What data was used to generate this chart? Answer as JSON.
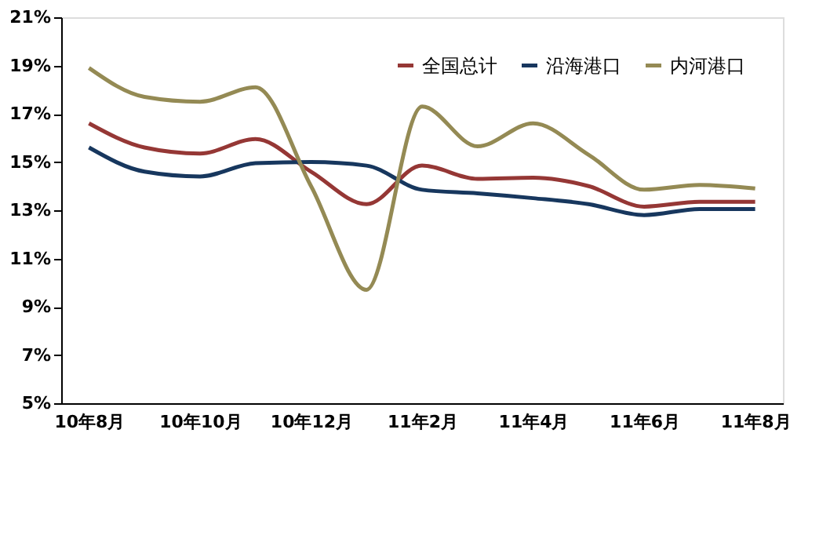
{
  "chart_data": {
    "type": "line",
    "categories": [
      "10年8月",
      null,
      "10年10月",
      null,
      "10年12月",
      null,
      "11年2月",
      null,
      "11年4月",
      null,
      "11年6月",
      null,
      "11年8月"
    ],
    "series": [
      {
        "name": "全国总计",
        "color": "#953735",
        "values": [
          16.6,
          15.6,
          15.35,
          15.95,
          14.6,
          13.25,
          14.85,
          14.3,
          14.35,
          14.0,
          13.15,
          13.35,
          13.35
        ]
      },
      {
        "name": "沿海港口",
        "color": "#17375e",
        "values": [
          15.6,
          14.6,
          14.4,
          14.95,
          15.0,
          14.85,
          13.85,
          13.7,
          13.5,
          13.25,
          12.8,
          13.05,
          13.05
        ]
      },
      {
        "name": "内河港口",
        "color": "#948a54",
        "values": [
          18.9,
          17.7,
          17.5,
          18.1,
          14.0,
          9.7,
          17.3,
          15.65,
          16.6,
          15.3,
          13.85,
          14.05,
          13.9
        ]
      }
    ],
    "ylim": [
      5,
      21
    ],
    "yticks": [
      {
        "value": 5,
        "label": "5%"
      },
      {
        "value": 7,
        "label": "7%"
      },
      {
        "value": 9,
        "label": "9%"
      },
      {
        "value": 11,
        "label": "11%"
      },
      {
        "value": 13,
        "label": "13%"
      },
      {
        "value": 15,
        "label": "15%"
      },
      {
        "value": 17,
        "label": "17%"
      },
      {
        "value": 19,
        "label": "19%"
      },
      {
        "value": 21,
        "label": "21%"
      }
    ],
    "legend": "top right",
    "grid": false,
    "marker": "none",
    "line_style": "solid"
  }
}
